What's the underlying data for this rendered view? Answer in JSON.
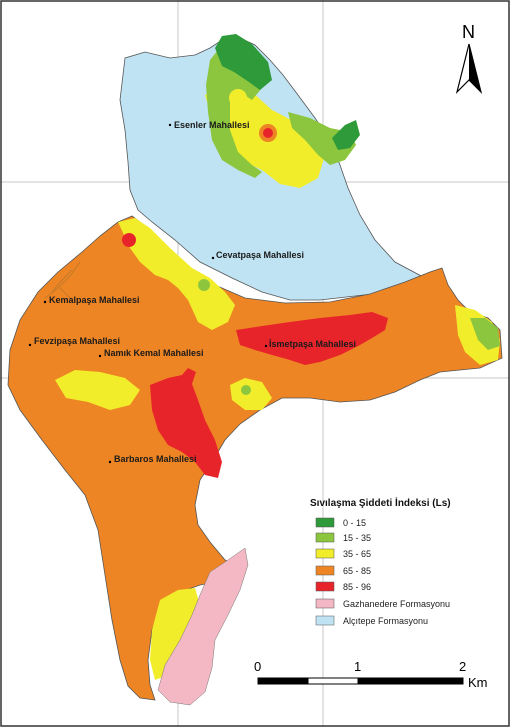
{
  "legend": {
    "title": "Sıvılaşma Şiddeti İndeksi (Ls)",
    "items": [
      {
        "label": "0 - 15",
        "color": "#2e9a3a"
      },
      {
        "label": "15 - 35",
        "color": "#8cc63f"
      },
      {
        "label": "35 - 65",
        "color": "#f2ed2a"
      },
      {
        "label": "65 - 85",
        "color": "#ee8524"
      },
      {
        "label": "85 - 96",
        "color": "#e8242b"
      },
      {
        "label": "Gazhanedere Formasyonu",
        "color": "#f4b8c4"
      },
      {
        "label": "Alçıtepe Formasyonu",
        "color": "#bfe3f3"
      }
    ]
  },
  "north_arrow": {
    "label": "N"
  },
  "scale_bar": {
    "ticks": [
      "0",
      "1",
      "2"
    ],
    "unit": "Km"
  },
  "places": {
    "esenler": "Esenler Mahallesi",
    "cevatpasa": "Cevatpaşa Mahallesi",
    "kemalpasa": "Kemalpaşa Mahallesi",
    "fevzipasa": "Fevzipaşa Mahallesi",
    "namik_kemal": "Namık Kemal Mahallesi",
    "ismetpasa": "İsmetpaşa Mahallesi",
    "barbaros": "Barbaros Mahallesi"
  }
}
